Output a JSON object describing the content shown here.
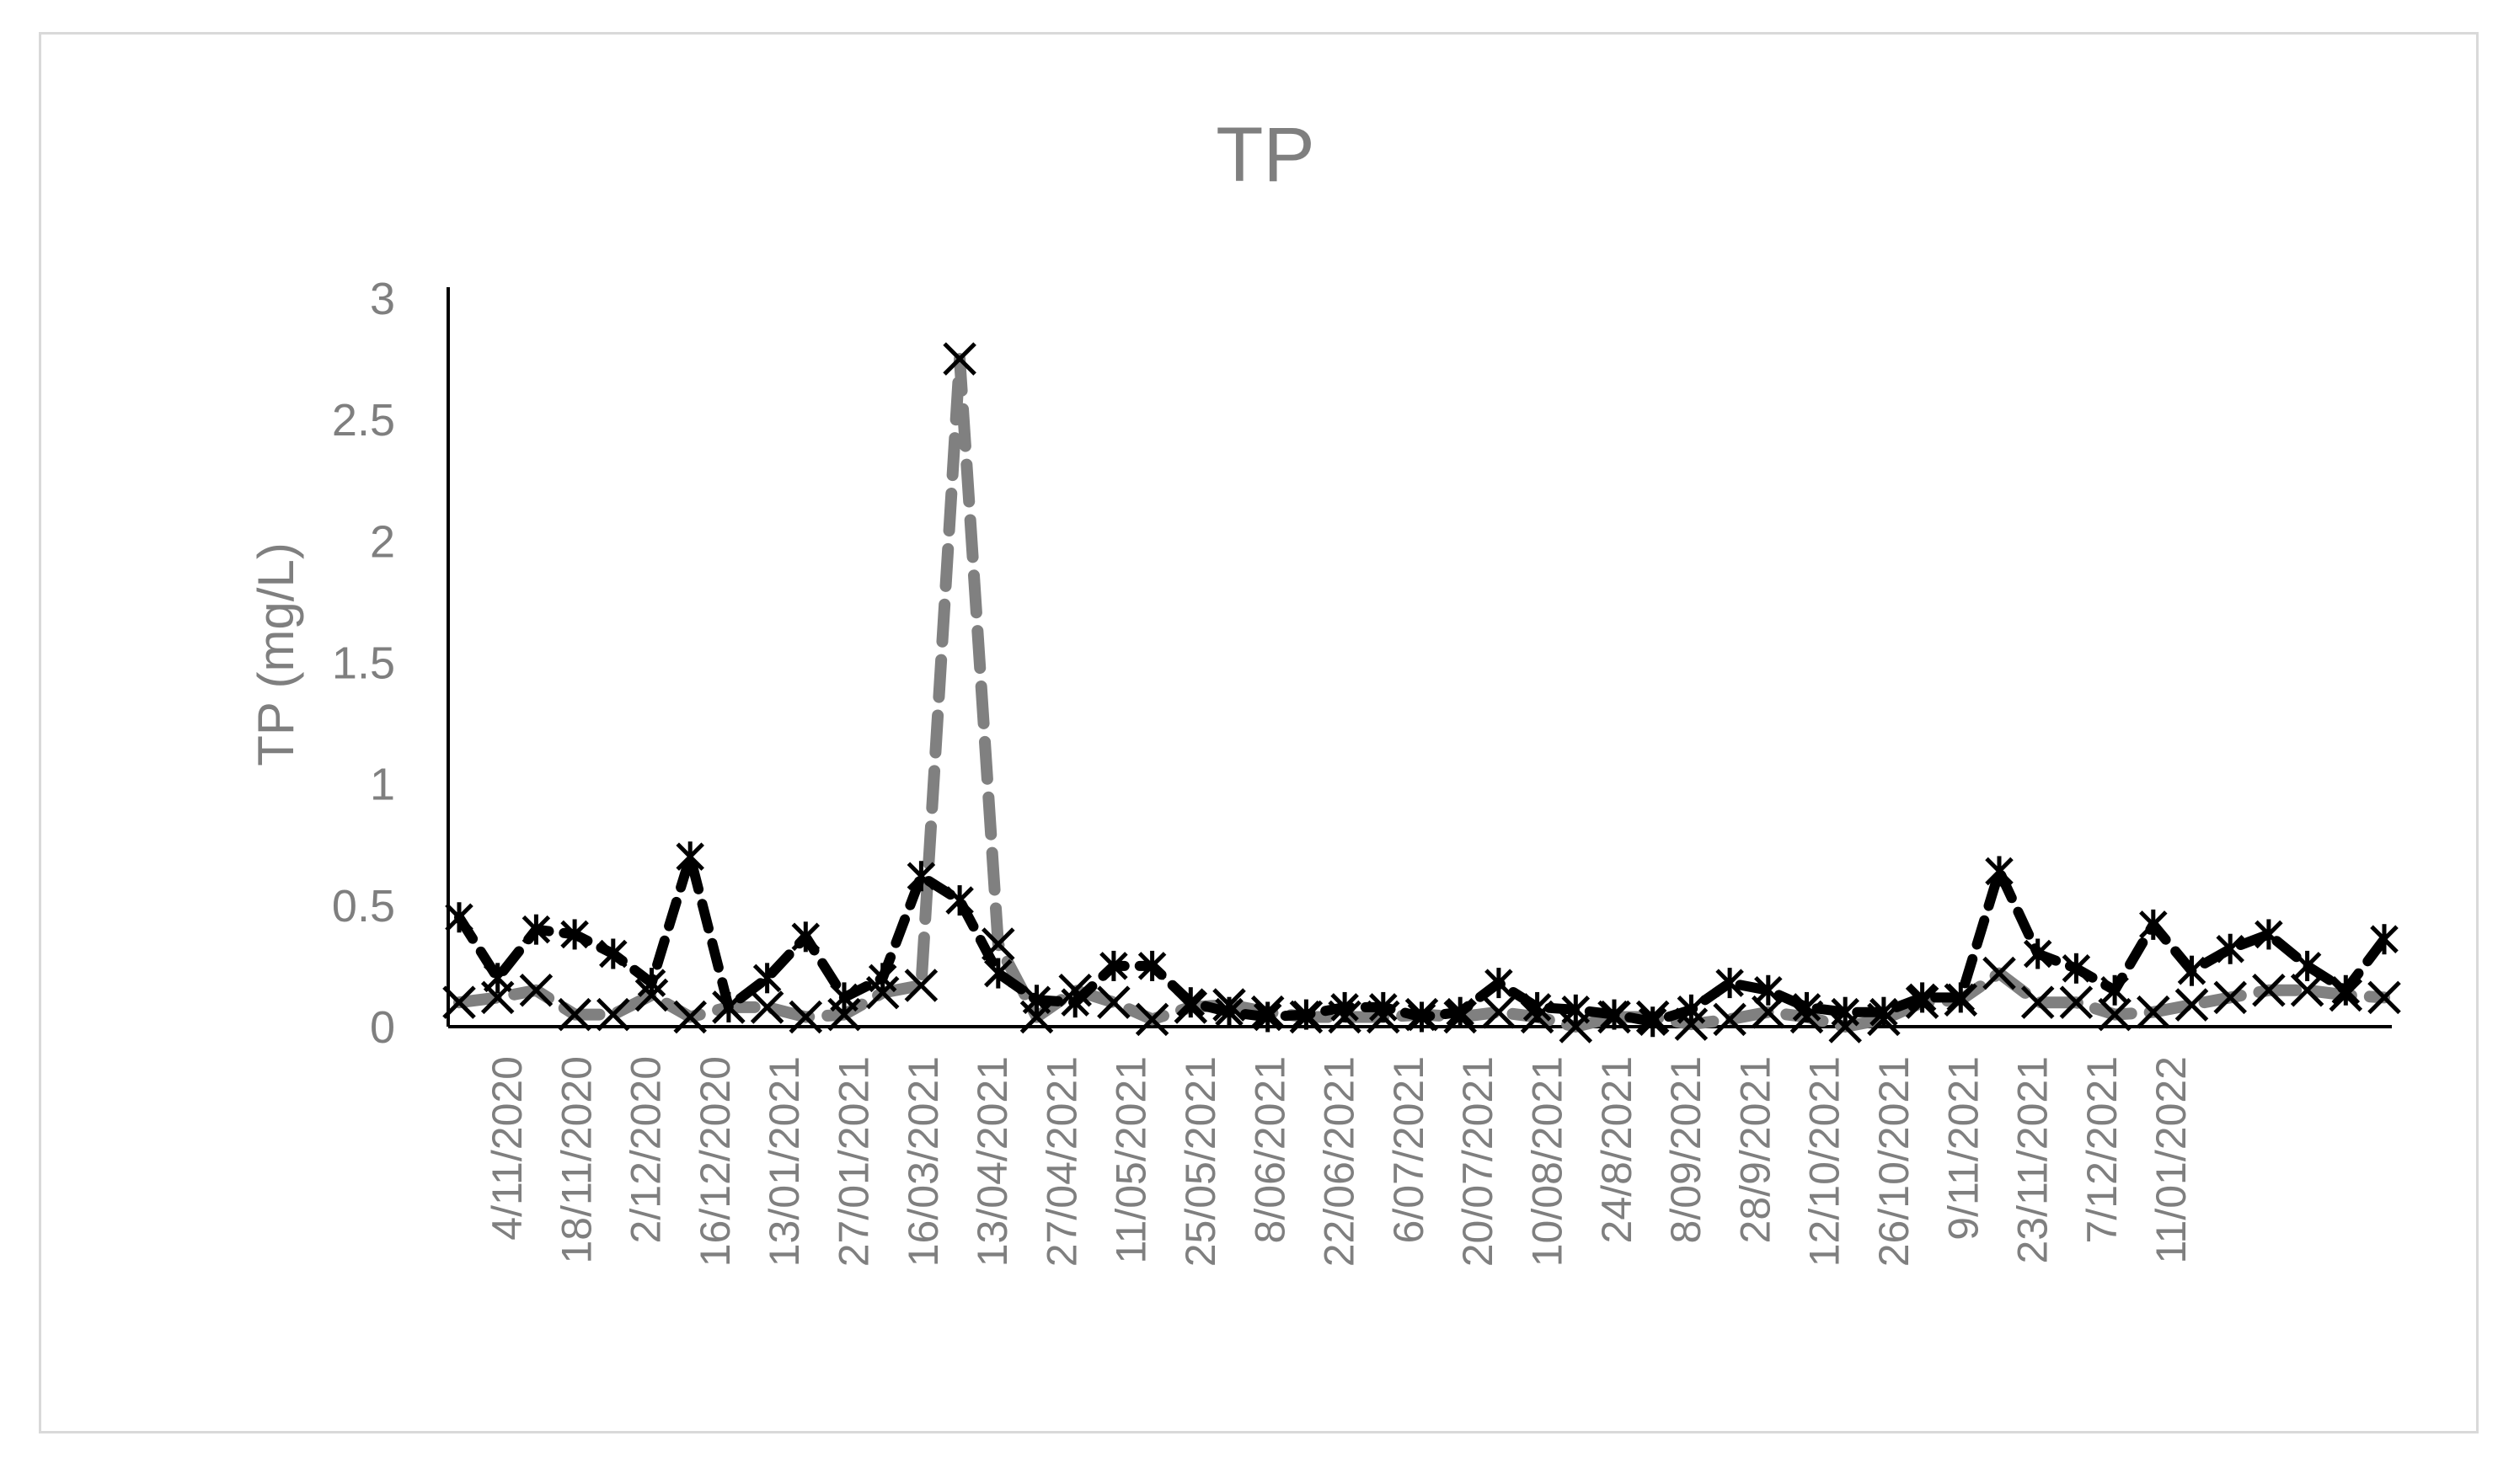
{
  "chart_data": {
    "type": "line",
    "title": "TP",
    "xlabel": "",
    "ylabel": "TP (mg/L)",
    "ylim": [
      0,
      3
    ],
    "yticks": [
      "0",
      "0.5",
      "1",
      "1.5",
      "2",
      "2.5",
      "3"
    ],
    "xtick_labels": [
      "4/11/2020",
      "18/11/2020",
      "2/12/2020",
      "16/12/2020",
      "13/01/2021",
      "27/01/2021",
      "16/03/2021",
      "13/04/2021",
      "27/04/2021",
      "11/05/2021",
      "25/05/2021",
      "8/06/2021",
      "22/06/2021",
      "6/07/2021",
      "20/07/2021",
      "10/08/2021",
      "24/8/2021",
      "8/09/2021",
      "28/9/2021",
      "12/10/2021",
      "26/10/2021",
      "9/11/2021",
      "23/11/2021",
      "7/12/2021",
      "11/01/2022"
    ],
    "grid": false,
    "legend": "none",
    "series": [
      {
        "style": "gray-dashed-x-marker",
        "color": "#808080",
        "values": [
          0.1,
          0.12,
          0.15,
          0.05,
          0.05,
          0.13,
          0.04,
          0.08,
          0.08,
          0.04,
          0.05,
          0.14,
          0.17,
          2.75,
          0.34,
          0.04,
          0.15,
          0.1,
          0.03,
          0.08,
          0.09,
          0.06,
          0.04,
          0.04,
          0.04,
          0.05,
          0.04,
          0.06,
          0.04,
          0.0,
          0.04,
          0.04,
          0.01,
          0.03,
          0.06,
          0.04,
          0.0,
          0.03,
          0.1,
          0.11,
          0.22,
          0.1,
          0.1,
          0.05,
          0.06,
          0.09,
          0.12,
          0.15,
          0.15,
          0.13,
          0.12
        ]
      },
      {
        "style": "black-dashed-star-marker",
        "color": "#000000",
        "values": [
          0.45,
          0.2,
          0.4,
          0.38,
          0.3,
          0.18,
          0.7,
          0.08,
          0.2,
          0.37,
          0.12,
          0.2,
          0.62,
          0.52,
          0.22,
          0.11,
          0.1,
          0.25,
          0.25,
          0.1,
          0.06,
          0.04,
          0.05,
          0.08,
          0.08,
          0.04,
          0.06,
          0.18,
          0.08,
          0.07,
          0.05,
          0.02,
          0.07,
          0.18,
          0.15,
          0.08,
          0.06,
          0.06,
          0.12,
          0.12,
          0.64,
          0.3,
          0.24,
          0.15,
          0.42,
          0.23,
          0.32,
          0.38,
          0.25,
          0.15,
          0.36
        ]
      }
    ]
  }
}
